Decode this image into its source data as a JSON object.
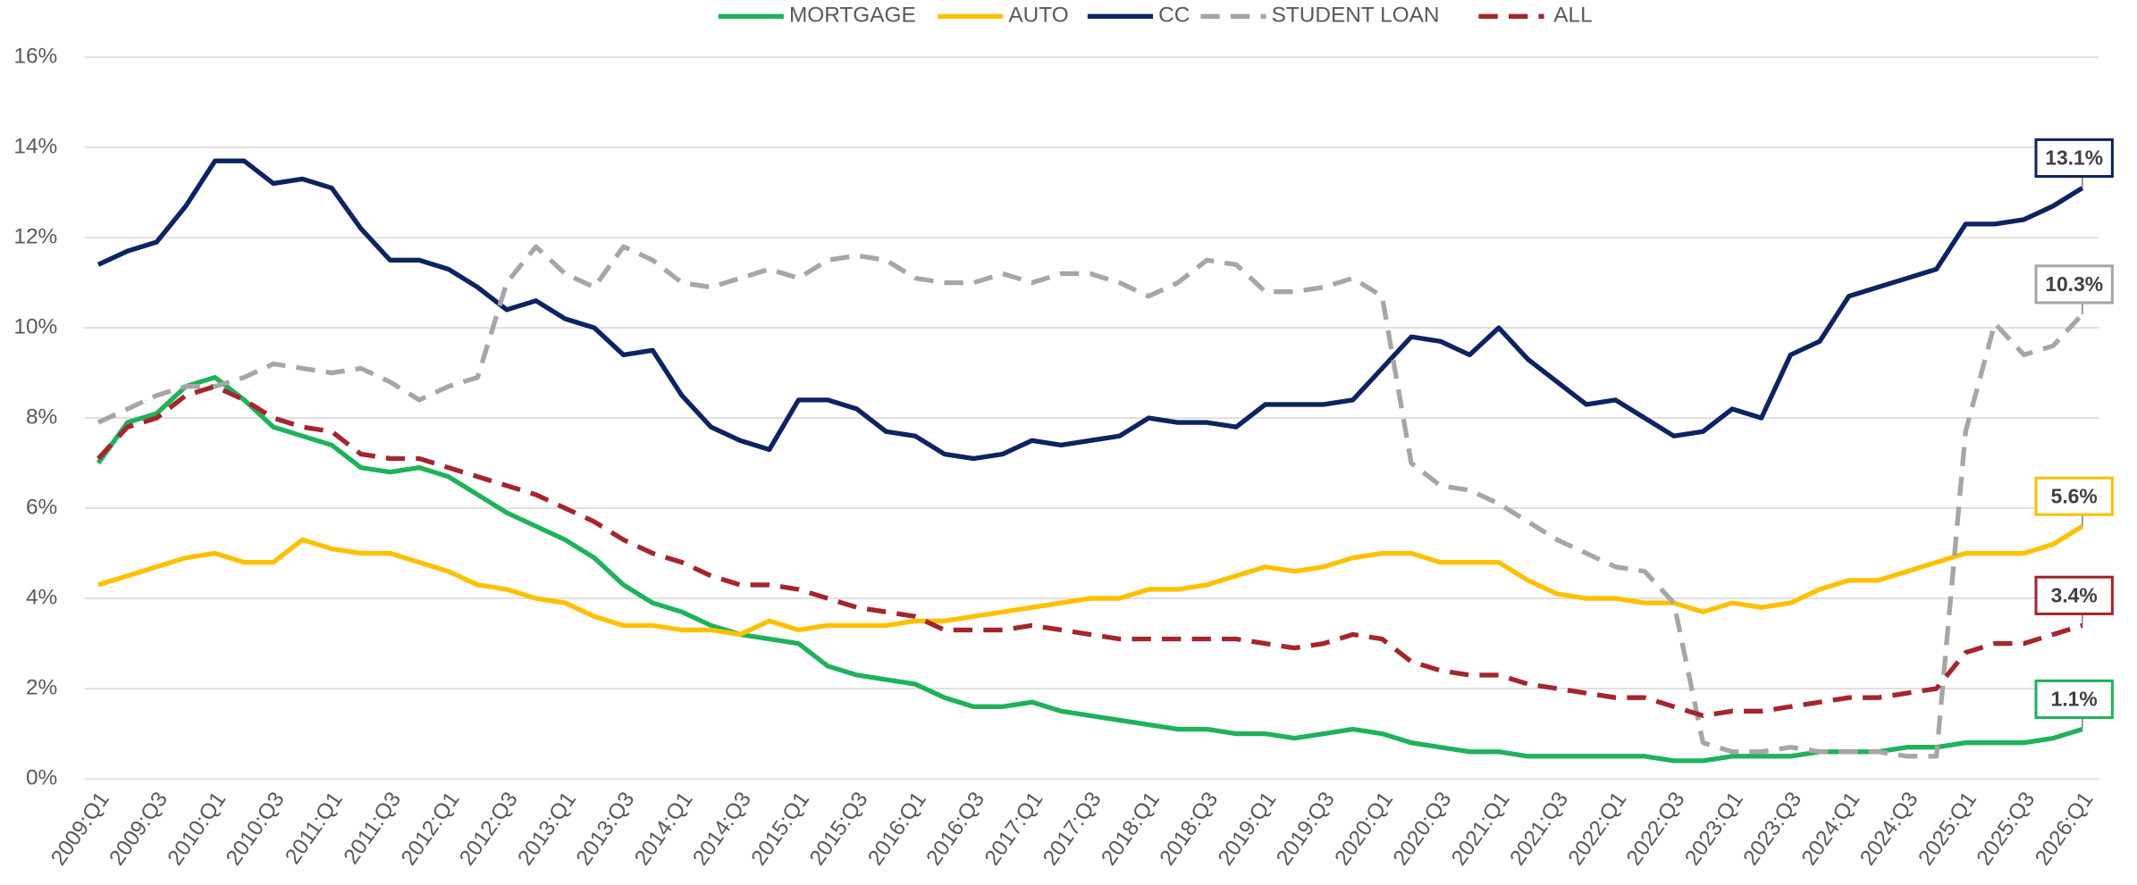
{
  "chart_data": {
    "type": "line",
    "categories": [
      "2009:Q1",
      null,
      "2009:Q3",
      null,
      "2010:Q1",
      null,
      "2010:Q3",
      null,
      "2011:Q1",
      null,
      "2011:Q3",
      null,
      "2012:Q1",
      null,
      "2012:Q3",
      null,
      "2013:Q1",
      null,
      "2013:Q3",
      null,
      "2014:Q1",
      null,
      "2014:Q3",
      null,
      "2015:Q1",
      null,
      "2015:Q3",
      null,
      "2016:Q1",
      null,
      "2016:Q3",
      null,
      "2017:Q1",
      null,
      "2017:Q3",
      null,
      "2018:Q1",
      null,
      "2018:Q3",
      null,
      "2019:Q1",
      null,
      "2019:Q3",
      null,
      "2020:Q1",
      null,
      "2020:Q3",
      null,
      "2021:Q1",
      null,
      "2021:Q3",
      null,
      "2022:Q1",
      null,
      "2022:Q3",
      null,
      "2023:Q1",
      null,
      "2023:Q3",
      null,
      "2024:Q1",
      null,
      "2024:Q3",
      null,
      "2025:Q1",
      null,
      "2025:Q3",
      null,
      "2026:Q1"
    ],
    "series": [
      {
        "name": "MORTGAGE",
        "color": "#1fb25a",
        "dashed": false,
        "values": [
          7.0,
          7.9,
          8.1,
          8.7,
          8.9,
          8.4,
          7.8,
          7.6,
          7.4,
          6.9,
          6.8,
          6.9,
          6.7,
          6.3,
          5.9,
          5.6,
          5.3,
          4.9,
          4.3,
          3.9,
          3.7,
          3.4,
          3.2,
          3.1,
          3.0,
          2.5,
          2.3,
          2.2,
          2.1,
          1.8,
          1.6,
          1.6,
          1.7,
          1.5,
          1.4,
          1.3,
          1.2,
          1.1,
          1.1,
          1.0,
          1.0,
          0.9,
          1.0,
          1.1,
          1.0,
          0.8,
          0.7,
          0.6,
          0.6,
          0.5,
          0.5,
          0.5,
          0.5,
          0.5,
          0.4,
          0.4,
          0.5,
          0.5,
          0.5,
          0.6,
          0.6,
          0.6,
          0.7,
          0.7,
          0.8,
          0.8,
          0.8,
          0.9,
          1.1
        ],
        "value_labels": [
          null,
          null,
          null,
          null,
          null,
          null,
          null,
          null,
          null,
          null,
          null,
          null,
          null,
          null,
          null,
          null,
          null,
          null,
          null,
          null,
          null,
          null,
          null,
          null,
          null,
          null,
          null,
          null,
          null,
          null,
          null,
          null,
          null,
          null,
          null,
          null,
          null,
          null,
          null,
          null,
          null,
          null,
          null,
          null,
          null,
          null,
          null,
          null,
          null,
          null,
          null,
          null,
          null,
          null,
          null,
          null,
          null,
          null,
          null,
          null,
          null,
          null,
          null,
          null,
          null,
          null,
          null,
          null,
          "1.1%"
        ]
      },
      {
        "name": "AUTO",
        "color": "#ffc000",
        "dashed": false,
        "values": [
          4.3,
          4.5,
          4.7,
          4.9,
          5.0,
          4.8,
          4.8,
          5.3,
          5.1,
          5.0,
          5.0,
          4.8,
          4.6,
          4.3,
          4.2,
          4.0,
          3.9,
          3.6,
          3.4,
          3.4,
          3.3,
          3.3,
          3.2,
          3.5,
          3.3,
          3.4,
          3.4,
          3.4,
          3.5,
          3.5,
          3.6,
          3.7,
          3.8,
          3.9,
          4.0,
          4.0,
          4.2,
          4.2,
          4.3,
          4.5,
          4.7,
          4.6,
          4.7,
          4.9,
          5.0,
          5.0,
          4.8,
          4.8,
          4.8,
          4.4,
          4.1,
          4.0,
          4.0,
          3.9,
          3.9,
          3.7,
          3.9,
          3.8,
          3.9,
          4.2,
          4.4,
          4.4,
          4.6,
          4.8,
          5.0,
          5.0,
          5.0,
          5.2,
          5.6
        ],
        "value_labels": [
          null,
          null,
          null,
          null,
          null,
          null,
          null,
          null,
          null,
          null,
          null,
          null,
          null,
          null,
          null,
          null,
          null,
          null,
          null,
          null,
          null,
          null,
          null,
          null,
          null,
          null,
          null,
          null,
          null,
          null,
          null,
          null,
          null,
          null,
          null,
          null,
          null,
          null,
          null,
          null,
          null,
          null,
          null,
          null,
          null,
          null,
          null,
          null,
          null,
          null,
          null,
          null,
          null,
          null,
          null,
          null,
          null,
          null,
          null,
          null,
          null,
          null,
          null,
          null,
          null,
          null,
          null,
          null,
          "5.6%"
        ]
      },
      {
        "name": "CC",
        "color": "#0c2461",
        "dashed": false,
        "values": [
          11.4,
          11.7,
          11.9,
          12.7,
          13.7,
          13.7,
          13.2,
          13.3,
          13.1,
          12.2,
          11.5,
          11.5,
          11.3,
          10.9,
          10.4,
          10.6,
          10.2,
          10.0,
          9.4,
          9.5,
          8.5,
          7.8,
          7.5,
          7.3,
          8.4,
          8.4,
          8.2,
          7.7,
          7.6,
          7.2,
          7.1,
          7.2,
          7.5,
          7.4,
          7.5,
          7.6,
          8.0,
          7.9,
          7.9,
          7.8,
          8.3,
          8.3,
          8.3,
          8.4,
          9.1,
          9.8,
          9.7,
          9.4,
          10.0,
          9.3,
          8.8,
          8.3,
          8.4,
          8.0,
          7.6,
          7.7,
          8.2,
          8.0,
          9.4,
          9.7,
          10.7,
          10.9,
          11.1,
          11.3,
          12.3,
          12.3,
          12.4,
          12.7,
          13.1
        ],
        "value_labels": [
          null,
          null,
          null,
          null,
          null,
          null,
          null,
          null,
          null,
          null,
          null,
          null,
          null,
          null,
          null,
          null,
          null,
          null,
          null,
          null,
          null,
          null,
          null,
          null,
          null,
          null,
          null,
          null,
          null,
          null,
          null,
          null,
          null,
          null,
          null,
          null,
          null,
          null,
          null,
          null,
          null,
          null,
          null,
          null,
          null,
          null,
          null,
          null,
          null,
          null,
          null,
          null,
          null,
          null,
          null,
          null,
          null,
          null,
          null,
          null,
          null,
          null,
          null,
          null,
          null,
          null,
          null,
          null,
          "13.1%"
        ]
      },
      {
        "name": "STUDENT LOAN",
        "color": "#a6a6a6",
        "dashed": true,
        "values": [
          7.9,
          8.2,
          8.5,
          8.7,
          8.7,
          8.9,
          9.2,
          9.1,
          9.0,
          9.1,
          8.8,
          8.4,
          8.7,
          8.9,
          11.0,
          11.8,
          11.2,
          10.9,
          11.8,
          11.5,
          11.0,
          10.9,
          11.1,
          11.3,
          11.1,
          11.5,
          11.6,
          11.5,
          11.1,
          11.0,
          11.0,
          11.2,
          11.0,
          11.2,
          11.2,
          11.0,
          10.7,
          11.0,
          11.5,
          11.4,
          10.8,
          10.8,
          10.9,
          11.1,
          10.7,
          7.0,
          6.5,
          6.4,
          6.1,
          5.7,
          5.3,
          5.0,
          4.7,
          4.6,
          3.9,
          0.8,
          0.6,
          0.6,
          0.7,
          0.6,
          0.6,
          0.6,
          0.5,
          0.5,
          7.7,
          10.1,
          9.4,
          9.6,
          10.3
        ],
        "value_labels": [
          null,
          null,
          null,
          null,
          null,
          null,
          null,
          null,
          null,
          null,
          null,
          null,
          null,
          null,
          null,
          null,
          null,
          null,
          null,
          null,
          null,
          null,
          null,
          null,
          null,
          null,
          null,
          null,
          null,
          null,
          null,
          null,
          null,
          null,
          null,
          null,
          null,
          null,
          null,
          null,
          null,
          null,
          null,
          null,
          null,
          null,
          null,
          null,
          null,
          null,
          null,
          null,
          null,
          null,
          null,
          null,
          null,
          null,
          null,
          null,
          null,
          null,
          null,
          null,
          null,
          null,
          null,
          null,
          "10.3%"
        ]
      },
      {
        "name": "ALL",
        "color": "#a4262c",
        "dashed": true,
        "values": [
          7.1,
          7.8,
          8.0,
          8.5,
          8.7,
          8.4,
          8.0,
          7.8,
          7.7,
          7.2,
          7.1,
          7.1,
          6.9,
          6.7,
          6.5,
          6.3,
          6.0,
          5.7,
          5.3,
          5.0,
          4.8,
          4.5,
          4.3,
          4.3,
          4.2,
          4.0,
          3.8,
          3.7,
          3.6,
          3.3,
          3.3,
          3.3,
          3.4,
          3.3,
          3.2,
          3.1,
          3.1,
          3.1,
          3.1,
          3.1,
          3.0,
          2.9,
          3.0,
          3.2,
          3.1,
          2.6,
          2.4,
          2.3,
          2.3,
          2.1,
          2.0,
          1.9,
          1.8,
          1.8,
          1.6,
          1.4,
          1.5,
          1.5,
          1.6,
          1.7,
          1.8,
          1.8,
          1.9,
          2.0,
          2.8,
          3.0,
          3.0,
          3.2,
          3.4
        ],
        "value_labels": [
          null,
          null,
          null,
          null,
          null,
          null,
          null,
          null,
          null,
          null,
          null,
          null,
          null,
          null,
          null,
          null,
          null,
          null,
          null,
          null,
          null,
          null,
          null,
          null,
          null,
          null,
          null,
          null,
          null,
          null,
          null,
          null,
          null,
          null,
          null,
          null,
          null,
          null,
          null,
          null,
          null,
          null,
          null,
          null,
          null,
          null,
          null,
          null,
          null,
          null,
          null,
          null,
          null,
          null,
          null,
          null,
          null,
          null,
          null,
          null,
          null,
          null,
          null,
          null,
          null,
          null,
          null,
          null,
          "3.4%"
        ]
      }
    ],
    "ylim": [
      0,
      16
    ],
    "yticks": [
      {
        "value": 0,
        "label": "0%"
      },
      {
        "value": 2,
        "label": "2%"
      },
      {
        "value": 4,
        "label": "4%"
      },
      {
        "value": 6,
        "label": "6%"
      },
      {
        "value": 8,
        "label": "8%"
      },
      {
        "value": 10,
        "label": "10%"
      },
      {
        "value": 12,
        "label": "12%"
      },
      {
        "value": 14,
        "label": "14%"
      },
      {
        "value": 16,
        "label": "16%"
      }
    ],
    "grid": true,
    "legend": "top"
  }
}
